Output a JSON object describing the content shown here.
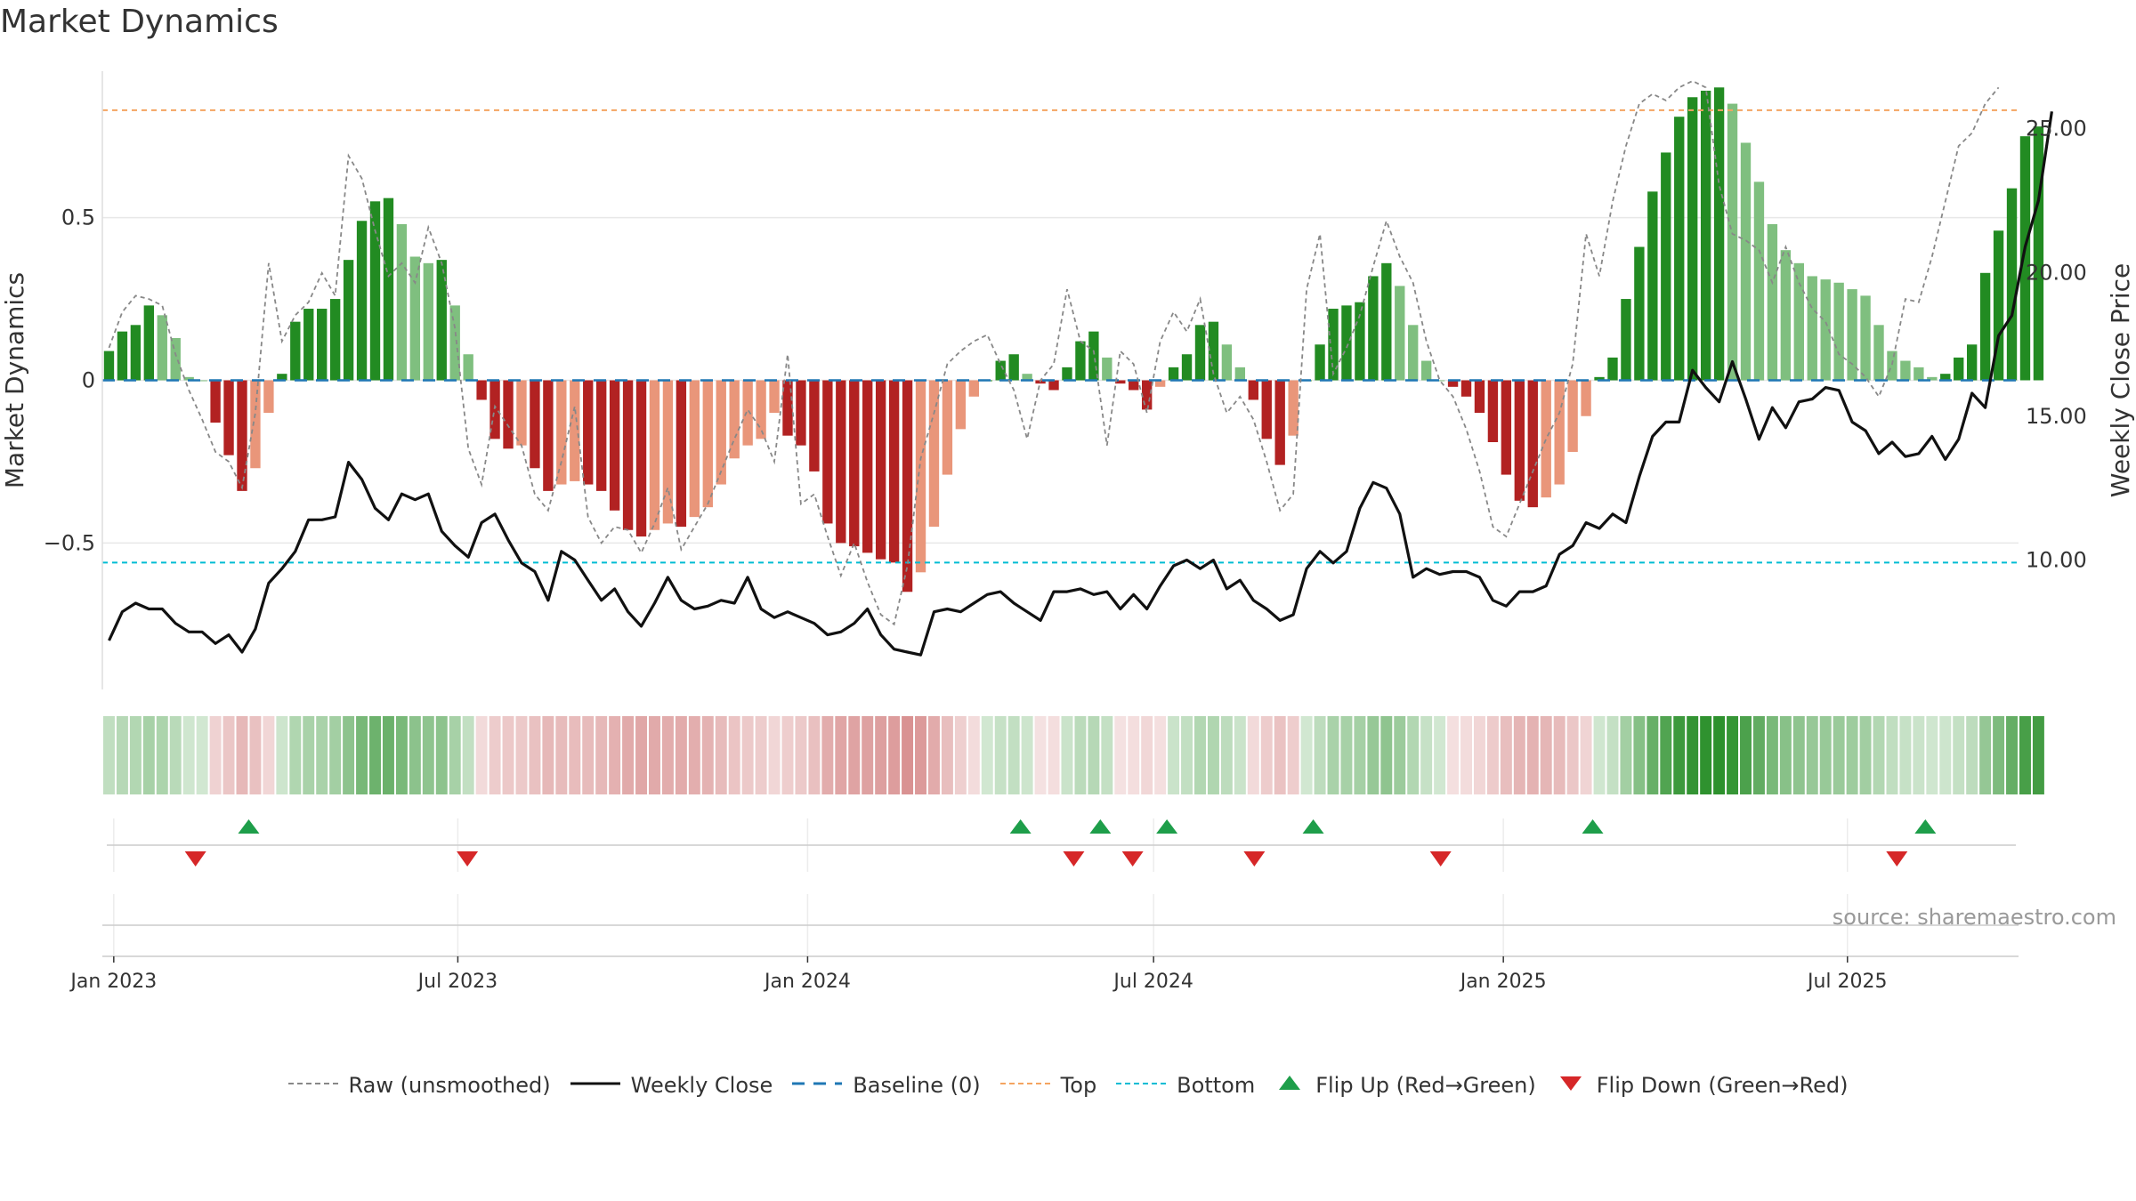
{
  "title": "Market Dynamics",
  "source": "source: sharemaestro.com",
  "colors": {
    "strong_green": "#228B22",
    "light_green": "#7FBF7F",
    "strong_red": "#B22222",
    "light_red": "#E9967A",
    "top_line": "#F4A460",
    "bottom_line": "#00BCD4",
    "baseline": "#1F77B4",
    "raw": "#888888",
    "close": "#111111",
    "flip_up": "#1E9E4A",
    "flip_down": "#D62728"
  },
  "chart_data": {
    "type": "bar",
    "title": "Market Dynamics",
    "ylabel_left": "Market Dynamics",
    "ylabel_right": "Weekly Close Price",
    "y_left_range": [
      -0.95,
      0.95
    ],
    "y_left_ticks": [
      {
        "v": -0.5,
        "label": "−0.5"
      },
      {
        "v": 0,
        "label": "0"
      },
      {
        "v": 0.5,
        "label": "0.5"
      }
    ],
    "y_right_range": [
      5.5,
      27.0
    ],
    "y_right_ticks": [
      {
        "v": 10,
        "label": "10.00"
      },
      {
        "v": 15,
        "label": "15.00"
      },
      {
        "v": 20,
        "label": "20.00"
      },
      {
        "v": 25,
        "label": "25.00"
      }
    ],
    "x_range": [
      "2022-12-26",
      "2025-09-29"
    ],
    "x_ticks": [
      {
        "date": "2023-01-01",
        "label": "Jan 2023"
      },
      {
        "date": "2023-07-01",
        "label": "Jul 2023"
      },
      {
        "date": "2024-01-01",
        "label": "Jan 2024"
      },
      {
        "date": "2024-07-01",
        "label": "Jul 2024"
      },
      {
        "date": "2025-01-01",
        "label": "Jan 2025"
      },
      {
        "date": "2025-07-01",
        "label": "Jul 2025"
      }
    ],
    "top_level": 0.83,
    "bottom_level": -0.56,
    "start_date": "2022-12-26",
    "weekly_dynamics": [
      0.09,
      0.15,
      0.17,
      0.23,
      0.2,
      0.13,
      0.01,
      0,
      -0.13,
      -0.23,
      -0.34,
      -0.27,
      -0.1,
      0.02,
      0.18,
      0.22,
      0.22,
      0.25,
      0.37,
      0.49,
      0.55,
      0.56,
      0.48,
      0.38,
      0.36,
      0.37,
      0.23,
      0.08,
      -0.06,
      -0.18,
      -0.21,
      -0.2,
      -0.27,
      -0.34,
      -0.32,
      -0.31,
      -0.32,
      -0.34,
      -0.4,
      -0.46,
      -0.48,
      -0.46,
      -0.44,
      -0.45,
      -0.42,
      -0.39,
      -0.32,
      -0.24,
      -0.2,
      -0.18,
      -0.1,
      -0.17,
      -0.2,
      -0.28,
      -0.44,
      -0.5,
      -0.51,
      -0.53,
      -0.55,
      -0.56,
      -0.65,
      -0.59,
      -0.45,
      -0.29,
      -0.15,
      -0.05,
      0,
      0.06,
      0.08,
      0.02,
      -0.01,
      -0.03,
      0.04,
      0.12,
      0.15,
      0.07,
      -0.01,
      -0.03,
      -0.09,
      -0.02,
      0.04,
      0.08,
      0.17,
      0.18,
      0.11,
      0.04,
      -0.06,
      -0.18,
      -0.26,
      -0.17,
      0,
      0.11,
      0.22,
      0.23,
      0.24,
      0.32,
      0.36,
      0.29,
      0.17,
      0.06,
      0,
      -0.02,
      -0.05,
      -0.1,
      -0.19,
      -0.29,
      -0.37,
      -0.39,
      -0.36,
      -0.32,
      -0.22,
      -0.11,
      0.01,
      0.07,
      0.25,
      0.41,
      0.58,
      0.7,
      0.81,
      0.87,
      0.89,
      0.9,
      0.85,
      0.73,
      0.61,
      0.48,
      0.4,
      0.36,
      0.32,
      0.31,
      0.3,
      0.28,
      0.26,
      0.17,
      0.09,
      0.06,
      0.04,
      0.01,
      0.02,
      0.07,
      0.11,
      0.33,
      0.46,
      0.59,
      0.75,
      0.78
    ],
    "weekly_close": [
      7.2,
      8.2,
      8.5,
      8.3,
      8.3,
      7.8,
      7.5,
      7.5,
      7.1,
      7.4,
      6.8,
      7.6,
      9.2,
      9.7,
      10.3,
      11.4,
      11.4,
      11.5,
      13.4,
      12.8,
      11.8,
      11.4,
      12.3,
      12.1,
      12.3,
      11.0,
      10.5,
      10.1,
      11.3,
      11.6,
      10.7,
      9.9,
      9.6,
      8.6,
      10.3,
      10.0,
      9.3,
      8.6,
      9.0,
      8.2,
      7.7,
      8.5,
      9.4,
      8.6,
      8.3,
      8.4,
      8.6,
      8.5,
      9.4,
      8.3,
      8.0,
      8.2,
      8.0,
      7.8,
      7.4,
      7.5,
      7.8,
      8.3,
      7.4,
      6.9,
      6.8,
      6.7,
      8.2,
      8.3,
      8.2,
      8.5,
      8.8,
      8.9,
      8.5,
      8.2,
      7.9,
      8.9,
      8.9,
      9.0,
      8.8,
      8.9,
      8.3,
      8.8,
      8.3,
      9.1,
      9.8,
      10.0,
      9.7,
      10.0,
      9.0,
      9.3,
      8.6,
      8.3,
      7.9,
      8.1,
      9.7,
      10.3,
      9.9,
      10.3,
      11.8,
      12.7,
      12.5,
      11.6,
      9.4,
      9.7,
      9.5,
      9.6,
      9.6,
      9.4,
      8.6,
      8.4,
      8.9,
      8.9,
      9.1,
      10.2,
      10.5,
      11.3,
      11.1,
      11.6,
      11.3,
      12.9,
      14.3,
      14.8,
      14.8,
      16.6,
      16.0,
      15.5,
      16.9,
      15.6,
      14.2,
      15.3,
      14.6,
      15.5,
      15.6,
      16.0,
      15.9,
      14.8,
      14.5,
      13.7,
      14.1,
      13.6,
      13.7,
      14.3,
      13.5,
      14.2,
      15.8,
      15.3,
      17.8,
      18.5,
      20.9,
      22.5,
      25.6
    ],
    "weekly_raw": [
      0.1,
      0.21,
      0.26,
      0.25,
      0.23,
      0.08,
      -0.03,
      -0.12,
      -0.22,
      -0.25,
      -0.33,
      -0.1,
      0.36,
      0.12,
      0.2,
      0.24,
      0.33,
      0.26,
      0.69,
      0.62,
      0.46,
      0.32,
      0.36,
      0.3,
      0.47,
      0.36,
      0.16,
      -0.21,
      -0.32,
      -0.08,
      -0.14,
      -0.2,
      -0.35,
      -0.4,
      -0.25,
      -0.08,
      -0.42,
      -0.5,
      -0.45,
      -0.46,
      -0.53,
      -0.44,
      -0.33,
      -0.52,
      -0.45,
      -0.38,
      -0.28,
      -0.18,
      -0.09,
      -0.15,
      -0.25,
      0.08,
      -0.38,
      -0.35,
      -0.48,
      -0.6,
      -0.5,
      -0.62,
      -0.72,
      -0.75,
      -0.57,
      -0.24,
      -0.1,
      0.05,
      0.09,
      0.12,
      0.14,
      0.05,
      -0.03,
      -0.18,
      0.0,
      0.05,
      0.28,
      0.12,
      0.09,
      -0.2,
      0.09,
      0.05,
      -0.1,
      0.12,
      0.21,
      0.15,
      0.25,
      0.02,
      -0.1,
      -0.05,
      -0.12,
      -0.25,
      -0.4,
      -0.35,
      0.28,
      0.45,
      0.02,
      0.1,
      0.2,
      0.35,
      0.49,
      0.38,
      0.3,
      0.12,
      0.0,
      -0.05,
      -0.15,
      -0.28,
      -0.45,
      -0.48,
      -0.38,
      -0.28,
      -0.18,
      -0.1,
      0.05,
      0.45,
      0.32,
      0.55,
      0.72,
      0.85,
      0.88,
      0.86,
      0.9,
      0.92,
      0.9,
      0.6,
      0.45,
      0.43,
      0.4,
      0.3,
      0.41,
      0.3,
      0.22,
      0.18,
      0.08,
      0.05,
      0.01,
      -0.05,
      0.05,
      0.25,
      0.24,
      0.38,
      0.55,
      0.72,
      0.76,
      0.85,
      0.9
    ],
    "flips_up": [
      "2023-03-13",
      "2024-04-22",
      "2024-06-03",
      "2024-07-08",
      "2024-09-23",
      "2025-02-17",
      "2025-08-11"
    ],
    "flips_down": [
      "2023-02-13",
      "2023-07-06",
      "2024-05-20",
      "2024-06-20",
      "2024-08-23",
      "2024-11-29",
      "2025-07-27"
    ],
    "legend": [
      {
        "key": "raw",
        "label": "Raw (unsmoothed)"
      },
      {
        "key": "close",
        "label": "Weekly Close"
      },
      {
        "key": "baseline",
        "label": "Baseline (0)"
      },
      {
        "key": "top",
        "label": "Top"
      },
      {
        "key": "bottom",
        "label": "Bottom"
      },
      {
        "key": "flipup",
        "label": "Flip Up (Red→Green)"
      },
      {
        "key": "flipdown",
        "label": "Flip Down (Green→Red)"
      }
    ]
  }
}
